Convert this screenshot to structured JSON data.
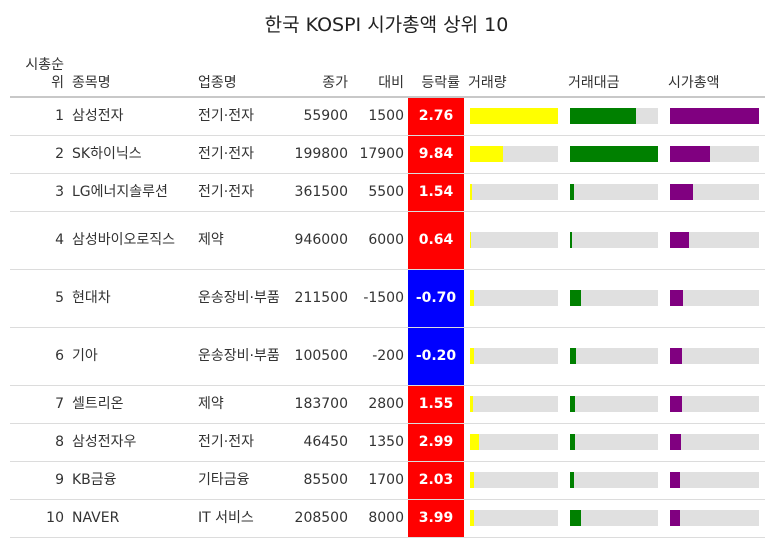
{
  "title": "한국 KOSPI 시가총액 상위 10",
  "headers": {
    "rank": "시총순위",
    "name": "종목명",
    "sector": "업종명",
    "close": "종가",
    "change": "대비",
    "rate": "등락률",
    "volume": "거래량",
    "value": "거래대금",
    "mcap": "시가총액"
  },
  "colors": {
    "positive": "#ff0000",
    "negative": "#0000ff",
    "volume": "#ffff00",
    "value": "#008000",
    "mcap": "#800080",
    "track": "#e0e0e0"
  },
  "rows": [
    {
      "rank": "1",
      "name": "삼성전자",
      "sector": "전기·전자",
      "close": "55900",
      "change": "1500",
      "rate": "2.76",
      "volume": 1.0,
      "value": 0.75,
      "mcap": 1.0
    },
    {
      "rank": "2",
      "name": "SK하이닉스",
      "sector": "전기·전자",
      "close": "199800",
      "change": "17900",
      "rate": "9.84",
      "volume": 0.38,
      "value": 1.0,
      "mcap": 0.45
    },
    {
      "rank": "3",
      "name": "LG에너지솔루션",
      "sector": "전기·전자",
      "close": "361500",
      "change": "5500",
      "rate": "1.54",
      "volume": 0.02,
      "value": 0.05,
      "mcap": 0.26
    },
    {
      "rank": "4",
      "name": "삼성바이오로직스",
      "sector": "제약",
      "close": "946000",
      "change": "6000",
      "rate": "0.64",
      "volume": 0.01,
      "value": 0.02,
      "mcap": 0.21
    },
    {
      "rank": "5",
      "name": "현대차",
      "sector": "운송장비·부품",
      "close": "211500",
      "change": "-1500",
      "rate": "-0.70",
      "volume": 0.04,
      "value": 0.13,
      "mcap": 0.15
    },
    {
      "rank": "6",
      "name": "기아",
      "sector": "운송장비·부품",
      "close": "100500",
      "change": "-200",
      "rate": "-0.20",
      "volume": 0.04,
      "value": 0.07,
      "mcap": 0.13
    },
    {
      "rank": "7",
      "name": "셀트리온",
      "sector": "제약",
      "close": "183700",
      "change": "2800",
      "rate": "1.55",
      "volume": 0.03,
      "value": 0.06,
      "mcap": 0.13
    },
    {
      "rank": "8",
      "name": "삼성전자우",
      "sector": "전기·전자",
      "close": "46450",
      "change": "1350",
      "rate": "2.99",
      "volume": 0.1,
      "value": 0.06,
      "mcap": 0.12
    },
    {
      "rank": "9",
      "name": "KB금융",
      "sector": "기타금융",
      "close": "85500",
      "change": "1700",
      "rate": "2.03",
      "volume": 0.04,
      "value": 0.05,
      "mcap": 0.11
    },
    {
      "rank": "10",
      "name": "NAVER",
      "sector": "IT 서비스",
      "close": "208500",
      "change": "8000",
      "rate": "3.99",
      "volume": 0.04,
      "value": 0.12,
      "mcap": 0.11
    }
  ]
}
